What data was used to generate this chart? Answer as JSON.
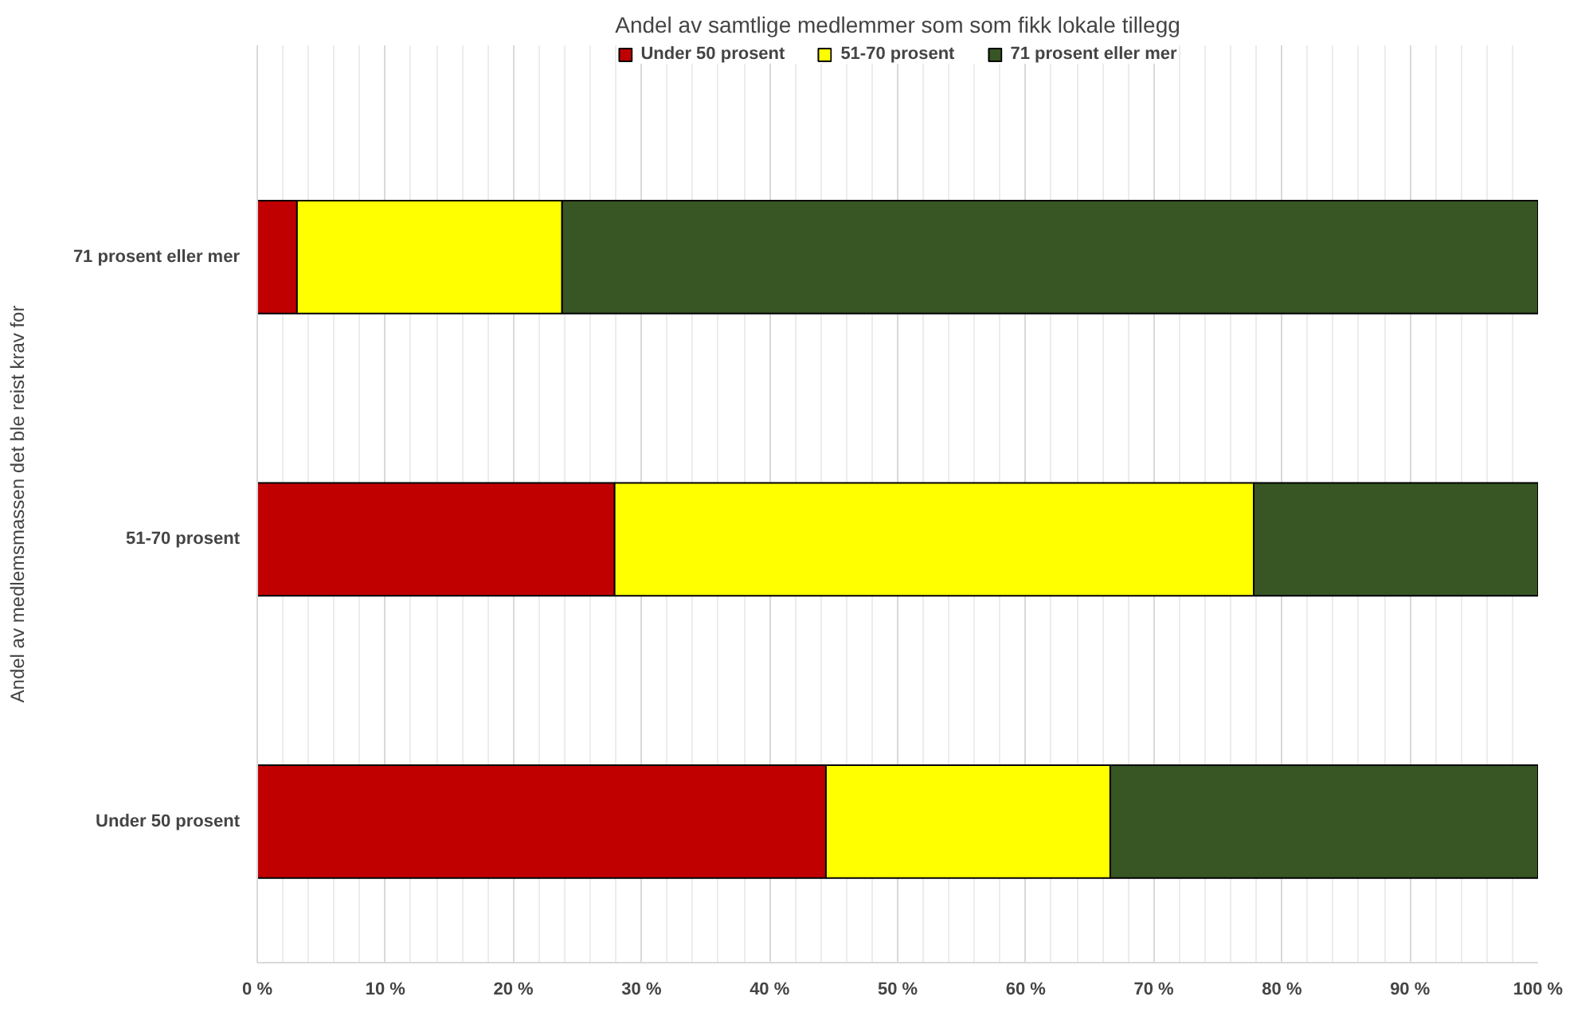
{
  "chart_data": {
    "type": "bar",
    "orientation": "horizontal",
    "stacked": true,
    "title": "Andel av samtlige medlemmer som som fikk lokale tillegg",
    "ylabel": "Andel av medlemsmassen det ble reist krav for",
    "categories": [
      "71 prosent eller mer",
      "51-70 prosent",
      "Under 50 prosent"
    ],
    "series": [
      {
        "name": "Under 50 prosent",
        "color": "#c00000",
        "values": [
          3.1,
          27.9,
          44.4
        ]
      },
      {
        "name": "51-70 prosent",
        "color": "#ffff00",
        "values": [
          20.7,
          49.9,
          22.2
        ]
      },
      {
        "name": "71 prosent eller mer",
        "color": "#375623",
        "values": [
          76.2,
          22.2,
          33.4
        ]
      }
    ],
    "xlim": [
      0,
      100
    ],
    "xticks": [
      {
        "value": 0,
        "label": "0 %"
      },
      {
        "value": 10,
        "label": "10 %"
      },
      {
        "value": 20,
        "label": "20 %"
      },
      {
        "value": 30,
        "label": "30 %"
      },
      {
        "value": 40,
        "label": "40 %"
      },
      {
        "value": 50,
        "label": "50 %"
      },
      {
        "value": 60,
        "label": "60 %"
      },
      {
        "value": 70,
        "label": "70 %"
      },
      {
        "value": 80,
        "label": "80 %"
      },
      {
        "value": 90,
        "label": "90 %"
      },
      {
        "value": 100,
        "label": "100 %"
      }
    ],
    "grid": "x",
    "legend": "top"
  }
}
